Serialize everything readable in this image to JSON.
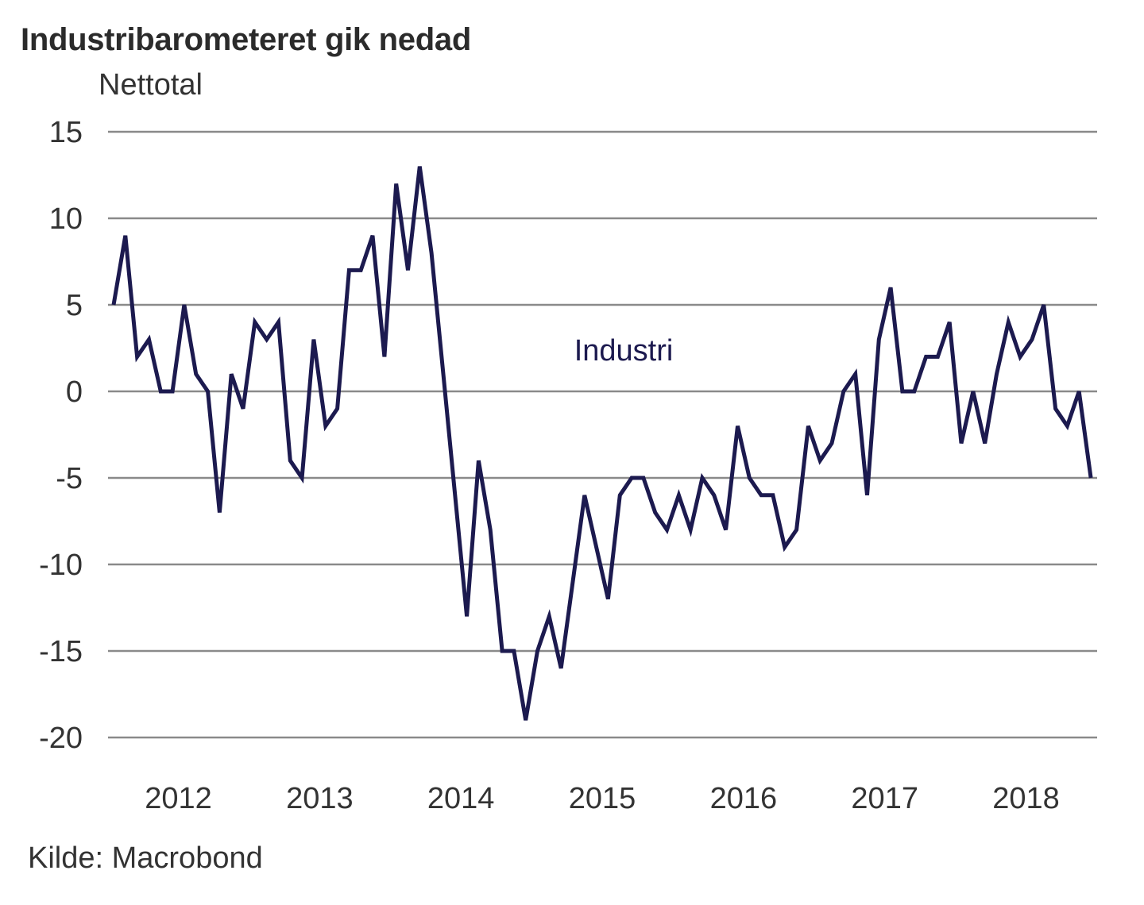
{
  "chart_data": {
    "type": "line",
    "title": "Industribarometeret gik nedad",
    "ylabel": "Nettotal",
    "xlabel": "",
    "source": "Kilde: Macrobond",
    "ylim": [
      -20,
      15
    ],
    "yticks": [
      15,
      10,
      5,
      0,
      -5,
      -10,
      -15,
      -20
    ],
    "ytick_labels": [
      "15",
      "10",
      "5",
      "0",
      "-5",
      "-10",
      "-15",
      "-20"
    ],
    "xtick_labels": [
      "2012",
      "2013",
      "2014",
      "2015",
      "2016",
      "2017",
      "2018"
    ],
    "grid": true,
    "frequency": "monthly",
    "series": [
      {
        "name": "Industri",
        "color": "#1c1a4f",
        "values": [
          5,
          9,
          2,
          3,
          0,
          0,
          5,
          1,
          0,
          -7,
          1,
          -1,
          4,
          3,
          4,
          -4,
          -5,
          3,
          -2,
          -1,
          7,
          7,
          9,
          2,
          12,
          7,
          13,
          8,
          1,
          -6,
          -13,
          -4,
          -8,
          -15,
          -15,
          -19,
          -15,
          -13,
          -16,
          -11,
          -6,
          -9,
          -12,
          -6,
          -5,
          -5,
          -7,
          -8,
          -6,
          -8,
          -5,
          -6,
          -8,
          -2,
          -5,
          -6,
          -6,
          -9,
          -8,
          -2,
          -4,
          -3,
          0,
          1,
          -6,
          3,
          6,
          0,
          0,
          2,
          2,
          4,
          -3,
          0,
          -3,
          1,
          4,
          2,
          3,
          5,
          -1,
          -2,
          0,
          -5
        ]
      }
    ]
  }
}
